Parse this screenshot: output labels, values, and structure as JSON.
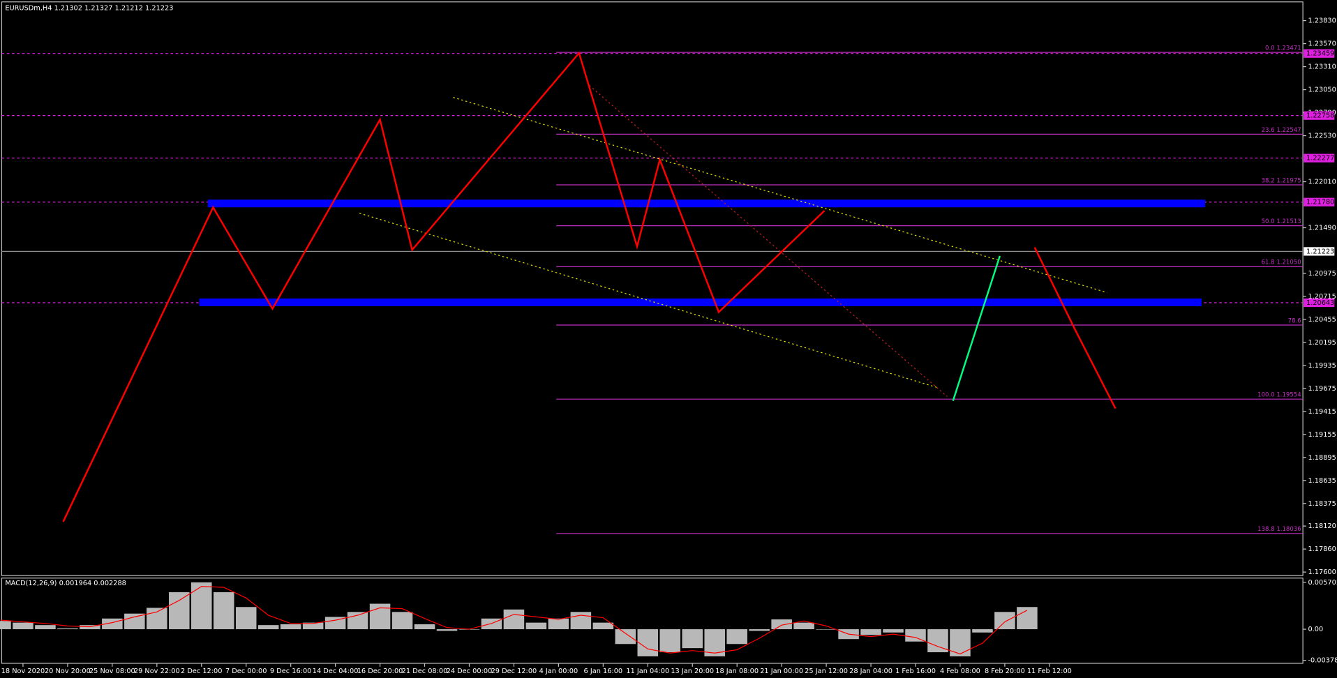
{
  "chart_data": {
    "type": "line",
    "title": "EURUSDm,H4  1.21302 1.21327 1.21212 1.21223",
    "categories": [
      "18 Nov 2020",
      "20 Nov 20:00",
      "25 Nov 08:00",
      "29 Nov 22:00",
      "2 Dec 12:00",
      "7 Dec 00:00",
      "9 Dec 16:00",
      "14 Dec 04:00",
      "16 Dec 20:00",
      "21 Dec 08:00",
      "24 Dec 00:00",
      "29 Dec 12:00",
      "4 Jan 00:00",
      "6 Jan 16:00",
      "11 Jan 04:00",
      "13 Jan 20:00",
      "18 Jan 08:00",
      "21 Jan 00:00",
      "25 Jan 12:00",
      "28 Jan 04:00",
      "1 Feb 16:00",
      "4 Feb 08:00",
      "8 Feb 20:00",
      "11 Feb 12:00"
    ],
    "xlim": [
      -0.477,
      28.68
    ],
    "ylim": [
      1.17561,
      1.24013
    ],
    "yticks": [
      {
        "value": 1.2383,
        "label": "1.23830"
      },
      {
        "value": 1.2357,
        "label": "1.23570"
      },
      {
        "value": 1.2331,
        "label": "1.23310"
      },
      {
        "value": 1.2305,
        "label": "1.23050"
      },
      {
        "value": 1.2279,
        "label": "1.22790"
      },
      {
        "value": 1.2253,
        "label": "1.22530"
      },
      {
        "value": 1.2201,
        "label": "1.22010"
      },
      {
        "value": 1.2149,
        "label": "1.21490"
      },
      {
        "value": 1.20975,
        "label": "1.20975"
      },
      {
        "value": 1.20715,
        "label": "1.20715"
      },
      {
        "value": 1.20455,
        "label": "1.20455"
      },
      {
        "value": 1.20195,
        "label": "1.20195"
      },
      {
        "value": 1.19935,
        "label": "1.19935"
      },
      {
        "value": 1.19675,
        "label": "1.19675"
      },
      {
        "value": 1.19415,
        "label": "1.19415"
      },
      {
        "value": 1.19155,
        "label": "1.19155"
      },
      {
        "value": 1.18895,
        "label": "1.18895"
      },
      {
        "value": 1.18635,
        "label": "1.18635"
      },
      {
        "value": 1.18375,
        "label": "1.18375"
      },
      {
        "value": 1.1812,
        "label": "1.18120"
      },
      {
        "value": 1.1786,
        "label": "1.17860"
      },
      {
        "value": 1.176,
        "label": "1.17600"
      }
    ],
    "series": [
      {
        "color": "#ff0000",
        "x": [
          0.9,
          4.26,
          5.59,
          8.0,
          8.72,
          12.46,
          13.76,
          14.27,
          15.59,
          17.96
        ],
        "values": [
          1.18168,
          1.21721,
          1.20575,
          1.22713,
          1.2124,
          1.23464,
          1.21278,
          1.2226,
          1.20537,
          1.21683
        ]
      },
      {
        "color": "#00ff80",
        "x": [
          20.84,
          21.89
        ],
        "values": [
          1.19535,
          1.21172
        ]
      },
      {
        "color": "#ff0000",
        "x": [
          22.67,
          23.57,
          24.48
        ],
        "values": [
          1.21268,
          1.20344,
          1.19448
        ]
      }
    ],
    "horizontal_lines": [
      {
        "value": 1.23459,
        "label": "1.23459",
        "color": "#e020e0"
      },
      {
        "value": 1.22758,
        "label": "1.22758",
        "color": "#e020e0"
      },
      {
        "value": 1.22277,
        "label": "1.22277",
        "color": "#e020e0"
      },
      {
        "value": 1.2178,
        "label": "1.21780",
        "color": "#e020e0"
      },
      {
        "value": 1.20643,
        "label": "1.20643",
        "color": "#e020e0"
      }
    ],
    "current_price": {
      "value": 1.21223,
      "label": "1.21223"
    },
    "fib": {
      "x_start": 11.95,
      "color": "#c030c0",
      "levels": [
        {
          "value": 1.23471,
          "label": "0.0 1.23471"
        },
        {
          "value": 1.22547,
          "label": "23.6 1.22547"
        },
        {
          "value": 1.21975,
          "label": "38.2 1.21975"
        },
        {
          "value": 1.21513,
          "label": "50.0 1.21513"
        },
        {
          "value": 1.2105,
          "label": "61.8 1.21050"
        },
        {
          "value": 1.20391,
          "label": "78.6"
        },
        {
          "value": 1.19554,
          "label": "100.0 1.19554"
        },
        {
          "value": 1.18036,
          "label": "138.8 1.18036"
        }
      ]
    },
    "zones": [
      {
        "x": [
          4.14,
          26.49
        ],
        "values": [
          1.21808,
          1.21721
        ],
        "color": "#0000ff"
      },
      {
        "x": [
          3.95,
          26.41
        ],
        "values": [
          1.20691,
          1.20604
        ],
        "color": "#0000ff"
      }
    ],
    "trend_lines": [
      {
        "x": [
          9.64,
          24.29
        ],
        "values": [
          1.22963,
          1.20758
        ],
        "color": "#e0e000"
      },
      {
        "x": [
          7.54,
          20.52
        ],
        "values": [
          1.21654,
          1.1968
        ],
        "color": "#e0e000"
      },
      {
        "x": [
          12.69,
          20.71
        ],
        "values": [
          1.23098,
          1.19583
        ],
        "color": "#c02020"
      }
    ],
    "macd": {
      "title": "MACD(12,26,9) 0.001964 0.002288",
      "ylim": [
        -0.004148,
        0.00622
      ],
      "yticks": [
        {
          "value": 0.005705,
          "label": "0.005705"
        },
        {
          "value": 0,
          "label": "0.00"
        },
        {
          "value": -0.003782,
          "label": "-0.003782"
        }
      ],
      "x": [
        -0.5,
        0,
        0.5,
        1,
        1.5,
        2,
        2.5,
        3,
        3.5,
        4,
        4.5,
        5,
        5.5,
        6,
        6.5,
        7,
        7.5,
        8,
        8.5,
        9,
        9.5,
        10,
        10.5,
        11,
        11.5,
        12,
        12.5,
        13,
        13.5,
        14,
        14.5,
        15,
        15.5,
        16,
        16.5,
        17,
        17.5,
        18,
        18.5,
        19,
        19.5,
        20,
        20.5,
        21,
        21.5,
        22,
        22.5
      ],
      "histogram": [
        0.001,
        0.0008,
        0.0005,
        0.0001,
        0.0005,
        0.0013,
        0.0019,
        0.0026,
        0.0045,
        0.0057,
        0.0045,
        0.0027,
        0.0005,
        0.0006,
        0.0008,
        0.0015,
        0.0021,
        0.0031,
        0.0021,
        0.0006,
        -0.0002,
        0,
        0.0013,
        0.0024,
        0.0008,
        0.0013,
        0.0021,
        0.0008,
        -0.0018,
        -0.0033,
        -0.0028,
        -0.0023,
        -0.0033,
        -0.0018,
        -0.0002,
        0.0012,
        0.0008,
        0,
        -0.0012,
        -0.0007,
        -0.0004,
        -0.0015,
        -0.0028,
        -0.0033,
        -0.0004,
        0.0021,
        0.0027
      ],
      "signal": [
        0.0011,
        0.0009,
        0.0007,
        0.0004,
        0.0003,
        0.0008,
        0.0015,
        0.0021,
        0.0035,
        0.0052,
        0.0051,
        0.0038,
        0.0017,
        0.0007,
        0.0007,
        0.0011,
        0.0017,
        0.0026,
        0.0025,
        0.0013,
        0.0002,
        0,
        0.0007,
        0.0018,
        0.0015,
        0.0012,
        0.0017,
        0.0014,
        -0.0005,
        -0.0024,
        -0.0029,
        -0.0026,
        -0.0029,
        -0.0025,
        -0.0011,
        0.0005,
        0.001,
        0.0004,
        -0.0006,
        -0.0009,
        -0.0006,
        -0.001,
        -0.0021,
        -0.003,
        -0.0017,
        0.0009,
        0.0023
      ],
      "histogram_color": "#b8b8b8",
      "signal_color": "#ff0000"
    }
  }
}
